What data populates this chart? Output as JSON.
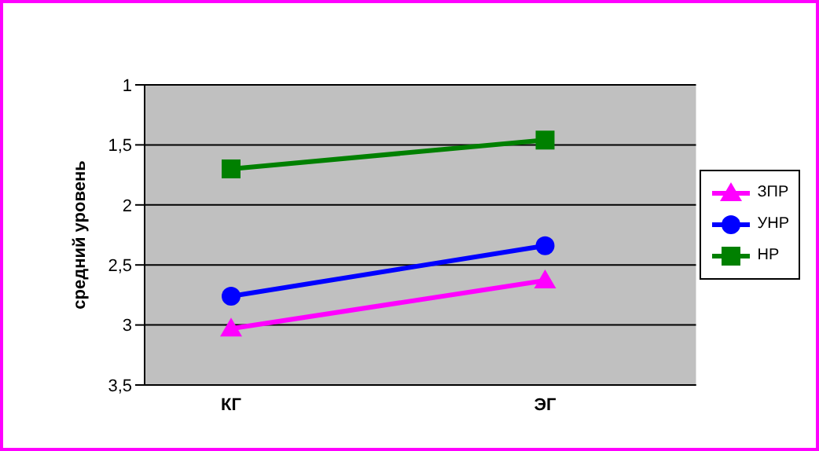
{
  "chart_data": {
    "type": "line",
    "ylabel": "средний уровень",
    "categories": [
      "КГ",
      "ЭГ"
    ],
    "series": [
      {
        "name": "ЗПР",
        "color": "#ff00ff",
        "marker": "triangle",
        "values": [
          3.03,
          2.63
        ]
      },
      {
        "name": "УНР",
        "color": "#0000ff",
        "marker": "circle",
        "values": [
          2.76,
          2.34
        ]
      },
      {
        "name": "НР",
        "color": "#008000",
        "marker": "square",
        "values": [
          1.7,
          1.46
        ]
      }
    ],
    "ylim": [
      3.5,
      1
    ],
    "yticks": [
      {
        "value": 1,
        "label": "1"
      },
      {
        "value": 1.5,
        "label": "1,5"
      },
      {
        "value": 2,
        "label": "2"
      },
      {
        "value": 2.5,
        "label": "2,5"
      },
      {
        "value": 3,
        "label": "3"
      },
      {
        "value": 3.5,
        "label": "3,5"
      }
    ],
    "grid": "y",
    "legend": "right",
    "line_style": "solid"
  }
}
